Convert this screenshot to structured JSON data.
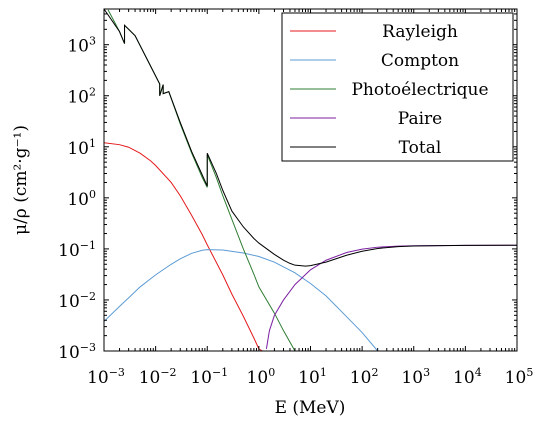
{
  "chart_data": {
    "type": "line",
    "xlabel": "E (MeV)",
    "ylabel": "μ/ρ (cm²·g⁻¹)",
    "x_scale": "log",
    "y_scale": "log",
    "xlim": [
      0.001,
      100000
    ],
    "ylim": [
      0.001,
      5000
    ],
    "grid": false,
    "legend_position": "top-right",
    "x_ticks": [
      {
        "base": "10",
        "exp": "−3",
        "value": 0.001
      },
      {
        "base": "10",
        "exp": "−2",
        "value": 0.01
      },
      {
        "base": "10",
        "exp": "−1",
        "value": 0.1
      },
      {
        "base": "10",
        "exp": "0",
        "value": 1
      },
      {
        "base": "10",
        "exp": "1",
        "value": 10
      },
      {
        "base": "10",
        "exp": "2",
        "value": 100
      },
      {
        "base": "10",
        "exp": "3",
        "value": 1000
      },
      {
        "base": "10",
        "exp": "4",
        "value": 10000
      },
      {
        "base": "10",
        "exp": "5",
        "value": 100000
      }
    ],
    "y_ticks": [
      {
        "base": "10",
        "exp": "−3",
        "value": 0.001
      },
      {
        "base": "10",
        "exp": "−2",
        "value": 0.01
      },
      {
        "base": "10",
        "exp": "−1",
        "value": 0.1
      },
      {
        "base": "10",
        "exp": "0",
        "value": 1
      },
      {
        "base": "10",
        "exp": "1",
        "value": 10
      },
      {
        "base": "10",
        "exp": "2",
        "value": 100
      },
      {
        "base": "10",
        "exp": "3",
        "value": 1000
      }
    ],
    "series": [
      {
        "name": "Rayleigh",
        "color": "#e41a1c",
        "x": [
          0.001,
          0.002,
          0.003,
          0.005,
          0.008,
          0.01,
          0.02,
          0.03,
          0.05,
          0.08,
          0.1,
          0.2,
          0.3,
          0.5,
          0.8,
          1.0,
          1.4
        ],
        "y": [
          12,
          11,
          9.8,
          7.5,
          5.3,
          4.3,
          2.0,
          1.1,
          0.45,
          0.19,
          0.12,
          0.031,
          0.013,
          0.0048,
          0.0018,
          0.0011,
          0.0009
        ]
      },
      {
        "name": "Compton",
        "color": "#5b9bd5",
        "x": [
          0.001,
          0.002,
          0.003,
          0.005,
          0.008,
          0.01,
          0.02,
          0.03,
          0.05,
          0.08,
          0.1,
          0.2,
          0.5,
          1,
          2,
          5,
          10,
          20,
          50,
          100,
          200
        ],
        "y": [
          0.0038,
          0.0075,
          0.011,
          0.018,
          0.026,
          0.031,
          0.05,
          0.064,
          0.082,
          0.094,
          0.097,
          0.095,
          0.083,
          0.071,
          0.055,
          0.034,
          0.021,
          0.012,
          0.0047,
          0.0023,
          0.001
        ]
      },
      {
        "name": "Photoélectrique",
        "color": "#2e7d32",
        "x": [
          0.0012,
          0.002,
          0.0025,
          0.0025,
          0.004,
          0.012,
          0.012,
          0.014,
          0.014,
          0.018,
          0.03,
          0.05,
          0.08,
          0.1,
          0.1,
          0.15,
          0.2,
          0.3,
          0.5,
          0.8,
          1,
          2,
          3,
          5
        ],
        "y": [
          4800,
          1800,
          1050,
          2400,
          1500,
          170,
          100,
          165,
          110,
          120,
          28,
          7.5,
          2.5,
          1.6,
          7.0,
          2.5,
          1.1,
          0.38,
          0.1,
          0.032,
          0.018,
          0.0055,
          0.0025,
          0.001
        ]
      },
      {
        "name": "Paire",
        "color": "#7b1fa2",
        "x": [
          1.4,
          1.6,
          2,
          3,
          5,
          10,
          20,
          50,
          100,
          200,
          500,
          1000,
          10000,
          100000
        ],
        "y": [
          0.0011,
          0.0025,
          0.005,
          0.01,
          0.02,
          0.039,
          0.06,
          0.085,
          0.099,
          0.108,
          0.113,
          0.115,
          0.117,
          0.118
        ]
      },
      {
        "name": "Total",
        "color": "#000000",
        "x": [
          0.001,
          0.002,
          0.0025,
          0.0025,
          0.004,
          0.012,
          0.012,
          0.014,
          0.014,
          0.018,
          0.03,
          0.05,
          0.08,
          0.1,
          0.1,
          0.15,
          0.2,
          0.3,
          0.5,
          0.8,
          1,
          2,
          3,
          4,
          5,
          8,
          10,
          20,
          50,
          100,
          200,
          500,
          1000,
          10000,
          100000
        ],
        "y": [
          5000,
          1800,
          1050,
          2400,
          1500,
          170,
          100,
          165,
          110,
          120,
          30,
          8.0,
          2.8,
          1.7,
          7.5,
          3.0,
          1.4,
          0.55,
          0.27,
          0.16,
          0.13,
          0.078,
          0.06,
          0.052,
          0.048,
          0.046,
          0.047,
          0.055,
          0.075,
          0.09,
          0.102,
          0.111,
          0.114,
          0.117,
          0.118
        ]
      }
    ]
  }
}
